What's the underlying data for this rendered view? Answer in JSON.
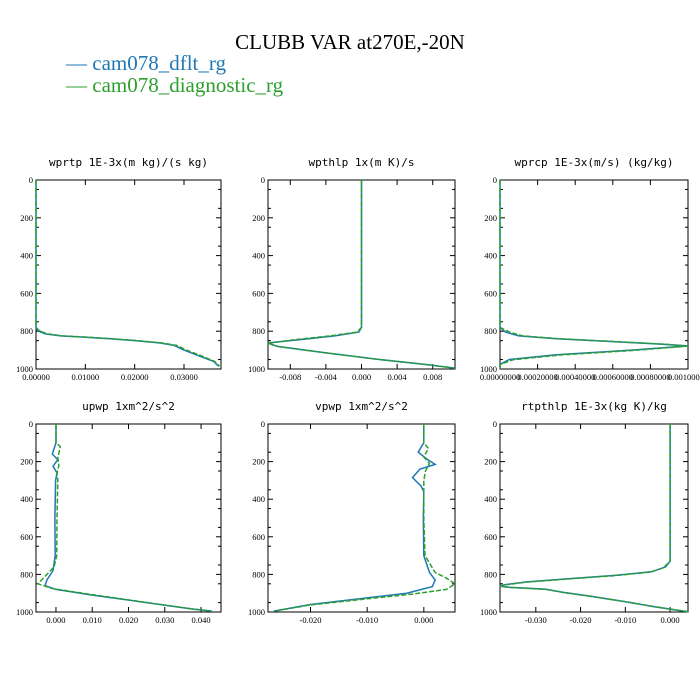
{
  "title": "CLUBB VAR at270E,-20N",
  "legend": [
    {
      "label": "cam078_dflt_rg",
      "color": "#1f77b4"
    },
    {
      "label": "cam078_diagnostic_rg",
      "color": "#2ca02c"
    }
  ],
  "chart_data": [
    {
      "type": "line",
      "title": "wprtp  1E-3x(m kg)/(s kg)",
      "xlim": [
        0.0,
        0.0375
      ],
      "ylim": [
        1000,
        0
      ],
      "xticks": [
        {
          "v": 0.0,
          "label": "0.00000"
        },
        {
          "v": 0.01,
          "label": "0.01000"
        },
        {
          "v": 0.02,
          "label": "0.02000"
        },
        {
          "v": 0.03,
          "label": "0.03000"
        }
      ],
      "yticks": [
        0,
        200,
        400,
        600,
        800,
        1000
      ],
      "series": [
        {
          "name": "cam078_dflt_rg",
          "points": [
            [
              0.0,
              0
            ],
            [
              0.0,
              780
            ],
            [
              0.0005,
              800
            ],
            [
              0.002,
              815
            ],
            [
              0.005,
              825
            ],
            [
              0.01,
              832
            ],
            [
              0.015,
              840
            ],
            [
              0.02,
              850
            ],
            [
              0.025,
              862
            ],
            [
              0.028,
              875
            ],
            [
              0.03,
              900
            ],
            [
              0.033,
              930
            ],
            [
              0.036,
              960
            ],
            [
              0.037,
              985
            ]
          ]
        },
        {
          "name": "cam078_diagnostic_rg",
          "points": [
            [
              0.0,
              0
            ],
            [
              0.0,
              780
            ],
            [
              0.0008,
              800
            ],
            [
              0.0025,
              815
            ],
            [
              0.0055,
              825
            ],
            [
              0.0105,
              832
            ],
            [
              0.0155,
              840
            ],
            [
              0.0205,
              850
            ],
            [
              0.0255,
              862
            ],
            [
              0.0285,
              875
            ],
            [
              0.0305,
              900
            ],
            [
              0.0335,
              930
            ],
            [
              0.0362,
              960
            ],
            [
              0.0372,
              985
            ]
          ]
        }
      ]
    },
    {
      "type": "line",
      "title": "wpthlp  1x(m K)/s",
      "xlim": [
        -0.0105,
        0.0105
      ],
      "ylim": [
        1000,
        0
      ],
      "xticks": [
        {
          "v": -0.008,
          "label": "-0.008"
        },
        {
          "v": -0.004,
          "label": "-0.004"
        },
        {
          "v": 0.0,
          "label": "0.000"
        },
        {
          "v": 0.004,
          "label": "0.004"
        },
        {
          "v": 0.008,
          "label": "0.008"
        }
      ],
      "yticks": [
        0,
        200,
        400,
        600,
        800,
        1000
      ],
      "series": [
        {
          "name": "cam078_dflt_rg",
          "points": [
            [
              0.0,
              0
            ],
            [
              0.0,
              780
            ],
            [
              -0.0003,
              805
            ],
            [
              -0.003,
              825
            ],
            [
              -0.007,
              845
            ],
            [
              -0.0105,
              862
            ],
            [
              -0.0095,
              880
            ],
            [
              -0.004,
              915
            ],
            [
              0.002,
              950
            ],
            [
              0.007,
              975
            ],
            [
              0.0105,
              995
            ]
          ]
        },
        {
          "name": "cam078_diagnostic_rg",
          "points": [
            [
              0.0,
              0
            ],
            [
              0.0,
              780
            ],
            [
              -0.0005,
              805
            ],
            [
              -0.0035,
              825
            ],
            [
              -0.0075,
              845
            ],
            [
              -0.0105,
              864
            ],
            [
              -0.0093,
              882
            ],
            [
              -0.0038,
              916
            ],
            [
              0.0022,
              951
            ],
            [
              0.0072,
              976
            ],
            [
              0.0105,
              996
            ]
          ]
        }
      ]
    },
    {
      "type": "line",
      "title": "wprcp  1E-3x(m/s) (kg/kg)",
      "xlim": [
        0.0,
        0.001
      ],
      "ylim": [
        1000,
        0
      ],
      "xticks": [
        {
          "v": 0.0,
          "label": "0.00000000"
        },
        {
          "v": 0.0002,
          "label": "0.00020000"
        },
        {
          "v": 0.0004,
          "label": "0.00040000"
        },
        {
          "v": 0.0006,
          "label": "0.00060000"
        },
        {
          "v": 0.0008,
          "label": "0.00080000"
        },
        {
          "v": 0.001,
          "label": "0.00100000"
        }
      ],
      "yticks": [
        0,
        200,
        400,
        600,
        800,
        1000
      ],
      "series": [
        {
          "name": "cam078_dflt_rg",
          "points": [
            [
              0.0,
              0
            ],
            [
              0.0,
              780
            ],
            [
              3e-05,
              805
            ],
            [
              0.0001,
              825
            ],
            [
              0.0003,
              840
            ],
            [
              0.0006,
              855
            ],
            [
              0.00085,
              868
            ],
            [
              0.001,
              878
            ],
            [
              0.0007,
              900
            ],
            [
              0.0003,
              925
            ],
            [
              5e-05,
              950
            ],
            [
              0.0,
              975
            ],
            [
              0.0,
              1000
            ]
          ]
        },
        {
          "name": "cam078_diagnostic_rg",
          "points": [
            [
              0.0,
              0
            ],
            [
              0.0,
              780
            ],
            [
              5e-05,
              805
            ],
            [
              0.00012,
              825
            ],
            [
              0.00032,
              840
            ],
            [
              0.00062,
              855
            ],
            [
              0.00087,
              868
            ],
            [
              0.001,
              879
            ],
            [
              0.00072,
              901
            ],
            [
              0.00032,
              926
            ],
            [
              7e-05,
              951
            ],
            [
              0.0,
              976
            ],
            [
              0.0,
              1000
            ]
          ]
        }
      ]
    },
    {
      "type": "line",
      "title": "upwp  1xm^2/s^2",
      "xlim": [
        -0.0055,
        0.0455
      ],
      "ylim": [
        1000,
        0
      ],
      "xticks": [
        {
          "v": 0.0,
          "label": "0.000"
        },
        {
          "v": 0.01,
          "label": "0.010"
        },
        {
          "v": 0.02,
          "label": "0.020"
        },
        {
          "v": 0.03,
          "label": "0.030"
        },
        {
          "v": 0.04,
          "label": "0.040"
        }
      ],
      "yticks": [
        0,
        200,
        400,
        600,
        800,
        1000
      ],
      "series": [
        {
          "name": "cam078_dflt_rg",
          "points": [
            [
              0.0,
              0
            ],
            [
              0.0,
              100
            ],
            [
              -0.001,
              160
            ],
            [
              0.0005,
              190
            ],
            [
              -0.0008,
              225
            ],
            [
              0.0003,
              260
            ],
            [
              -0.0001,
              300
            ],
            [
              -0.0003,
              500
            ],
            [
              -0.0002,
              700
            ],
            [
              -0.0008,
              780
            ],
            [
              -0.0025,
              830
            ],
            [
              -0.003,
              860
            ],
            [
              0.0,
              880
            ],
            [
              0.01,
              910
            ],
            [
              0.025,
              950
            ],
            [
              0.038,
              985
            ],
            [
              0.043,
              995
            ]
          ]
        },
        {
          "name": "cam078_diagnostic_rg",
          "points": [
            [
              0.0,
              0
            ],
            [
              0.0,
              100
            ],
            [
              0.0012,
              120
            ],
            [
              0.0005,
              180
            ],
            [
              0.0008,
              220
            ],
            [
              0.0003,
              260
            ],
            [
              0.0005,
              300
            ],
            [
              0.0003,
              500
            ],
            [
              0.0002,
              700
            ],
            [
              -0.0005,
              760
            ],
            [
              -0.003,
              810
            ],
            [
              -0.005,
              850
            ],
            [
              -0.001,
              875
            ],
            [
              0.009,
              905
            ],
            [
              0.024,
              947
            ],
            [
              0.037,
              982
            ],
            [
              0.043,
              995
            ]
          ]
        }
      ]
    },
    {
      "type": "line",
      "title": "vpwp  1xm^2/s^2",
      "xlim": [
        -0.0275,
        0.0055
      ],
      "ylim": [
        1000,
        0
      ],
      "xticks": [
        {
          "v": -0.02,
          "label": "-0.020"
        },
        {
          "v": -0.01,
          "label": "-0.010"
        },
        {
          "v": 0.0,
          "label": "0.000"
        }
      ],
      "yticks": [
        0,
        200,
        400,
        600,
        800,
        1000
      ],
      "series": [
        {
          "name": "cam078_dflt_rg",
          "points": [
            [
              0.0,
              0
            ],
            [
              0.0,
              100
            ],
            [
              -0.001,
              150
            ],
            [
              0.0007,
              190
            ],
            [
              0.002,
              215
            ],
            [
              -0.0007,
              240
            ],
            [
              -0.002,
              285
            ],
            [
              -0.0005,
              330
            ],
            [
              0.0,
              360
            ],
            [
              -0.0001,
              500
            ],
            [
              0.0,
              700
            ],
            [
              0.001,
              790
            ],
            [
              0.002,
              830
            ],
            [
              0.0015,
              865
            ],
            [
              -0.003,
              900
            ],
            [
              -0.01,
              925
            ],
            [
              -0.02,
              960
            ],
            [
              -0.0265,
              995
            ]
          ]
        },
        {
          "name": "cam078_diagnostic_rg",
          "points": [
            [
              0.0,
              0
            ],
            [
              0.0,
              100
            ],
            [
              0.0008,
              130
            ],
            [
              0.0,
              175
            ],
            [
              0.001,
              210
            ],
            [
              0.0003,
              250
            ],
            [
              0.0,
              300
            ],
            [
              0.0,
              500
            ],
            [
              0.0002,
              700
            ],
            [
              0.002,
              790
            ],
            [
              0.004,
              820
            ],
            [
              0.0055,
              850
            ],
            [
              0.004,
              880
            ],
            [
              -0.002,
              905
            ],
            [
              -0.01,
              930
            ],
            [
              -0.02,
              962
            ],
            [
              -0.0265,
              996
            ]
          ]
        }
      ]
    },
    {
      "type": "line",
      "title": "rtpthlp  1E-3x(kg K)/kg",
      "xlim": [
        -0.038,
        0.004
      ],
      "ylim": [
        1000,
        0
      ],
      "xticks": [
        {
          "v": -0.03,
          "label": "-0.030"
        },
        {
          "v": -0.02,
          "label": "-0.020"
        },
        {
          "v": -0.01,
          "label": "-0.010"
        },
        {
          "v": 0.0,
          "label": "0.000"
        }
      ],
      "yticks": [
        0,
        200,
        400,
        600,
        800,
        1000
      ],
      "series": [
        {
          "name": "cam078_dflt_rg",
          "points": [
            [
              0.0,
              0
            ],
            [
              0.0,
              730
            ],
            [
              -0.001,
              760
            ],
            [
              -0.004,
              785
            ],
            [
              -0.012,
              805
            ],
            [
              -0.022,
              822
            ],
            [
              -0.032,
              840
            ],
            [
              -0.037,
              855
            ],
            [
              -0.038,
              862
            ],
            [
              -0.036,
              868
            ],
            [
              -0.028,
              878
            ],
            [
              -0.024,
              895
            ],
            [
              -0.018,
              915
            ],
            [
              -0.01,
              945
            ],
            [
              -0.004,
              970
            ],
            [
              0.002,
              992
            ],
            [
              0.004,
              998
            ]
          ]
        },
        {
          "name": "cam078_diagnostic_rg",
          "points": [
            [
              0.0,
              0
            ],
            [
              0.0,
              730
            ],
            [
              -0.0015,
              765
            ],
            [
              -0.0045,
              788
            ],
            [
              -0.0125,
              807
            ],
            [
              -0.0225,
              824
            ],
            [
              -0.0325,
              842
            ],
            [
              -0.0372,
              857
            ],
            [
              -0.038,
              864
            ],
            [
              -0.0355,
              870
            ],
            [
              -0.0275,
              880
            ],
            [
              -0.0235,
              898
            ],
            [
              -0.0175,
              918
            ],
            [
              -0.0095,
              947
            ],
            [
              -0.0035,
              972
            ],
            [
              0.0025,
              993
            ],
            [
              0.004,
              998
            ]
          ]
        }
      ]
    }
  ]
}
